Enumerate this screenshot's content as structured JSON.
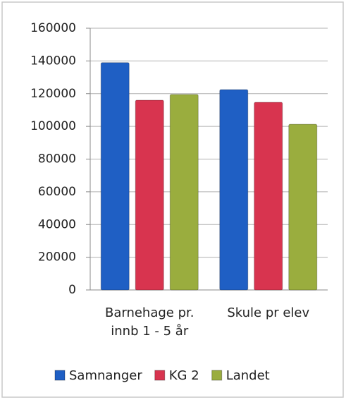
{
  "chart_data": {
    "type": "bar",
    "categories": [
      "Barnehage pr. innb 1 - 5 år",
      "Skule pr elev"
    ],
    "series": [
      {
        "name": "Samnanger",
        "color": "#1f5fc4",
        "values": [
          139000,
          122500
        ]
      },
      {
        "name": "KG 2",
        "color": "#d8344f",
        "values": [
          116000,
          114700
        ]
      },
      {
        "name": "Landet",
        "color": "#9aad3e",
        "values": [
          119500,
          101300
        ]
      }
    ],
    "ylim": [
      0,
      160000
    ],
    "yticks": [
      0,
      20000,
      40000,
      60000,
      80000,
      100000,
      120000,
      140000,
      160000
    ],
    "grid": true
  }
}
